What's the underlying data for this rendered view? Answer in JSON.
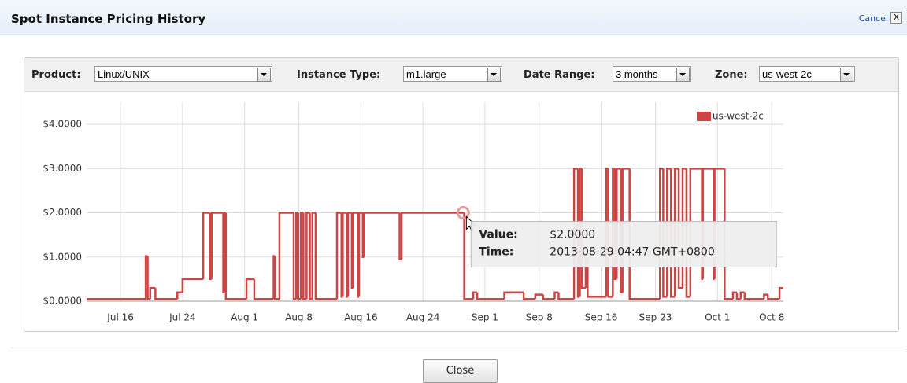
{
  "header": {
    "title": "Spot Instance Pricing History",
    "cancel": "Cancel",
    "close_icon": "X"
  },
  "controls": [
    {
      "label": "Product:",
      "value": "Linux/UNIX"
    },
    {
      "label": "Instance Type:",
      "value": "m1.large"
    },
    {
      "label": "Date Range:",
      "value": "3 months"
    },
    {
      "label": "Zone:",
      "value": "us-west-2c"
    }
  ],
  "chart_data": {
    "type": "step",
    "x": [
      "2013-07-11T15:00",
      "2013-07-19T06:00",
      "2013-07-19T12:00",
      "2013-07-19T20:00",
      "2013-07-20T12:00",
      "2013-07-23T08:00",
      "2013-07-24T00:00",
      "2013-07-26T16:00",
      "2013-07-27T12:00",
      "2013-07-27T18:00",
      "2013-07-29T06:00",
      "2013-07-29T10:00",
      "2013-07-29T14:00",
      "2013-08-01T06:00",
      "2013-08-02T06:00",
      "2013-08-04T18:00",
      "2013-08-04T22:00",
      "2013-08-05T12:00",
      "2013-08-07T08:00",
      "2013-08-07T16:00",
      "2013-08-07T22:00",
      "2013-08-08T06:00",
      "2013-08-08T14:00",
      "2013-08-09T00:00",
      "2013-08-09T10:00",
      "2013-08-09T18:00",
      "2013-08-10T04:00",
      "2013-08-12T22:00",
      "2013-08-13T12:00",
      "2013-08-13T16:00",
      "2013-08-14T04:00",
      "2013-08-14T08:00",
      "2013-08-14T20:00",
      "2013-08-15T00:00",
      "2013-08-15T14:00",
      "2013-08-15T18:00",
      "2013-08-16T06:00",
      "2013-08-16T10:00",
      "2013-08-21T00:00",
      "2013-08-21T06:00",
      "2013-08-29T04:47",
      "2013-08-29T08:00",
      "2013-08-30T12:00",
      "2013-08-31T00:00",
      "2013-09-03T12:00",
      "2013-09-06T00:00",
      "2013-09-07T12:00",
      "2013-09-08T12:00",
      "2013-09-10T00:00",
      "2013-09-10T12:00",
      "2013-09-12T12:00",
      "2013-09-13T00:00",
      "2013-09-13T06:00",
      "2013-09-13T12:00",
      "2013-09-14T00:00",
      "2013-09-14T06:00",
      "2013-09-16T16:00",
      "2013-09-16T22:00",
      "2013-09-17T12:00",
      "2013-09-17T18:00",
      "2013-09-18T00:00",
      "2013-09-18T12:00",
      "2013-09-18T18:00",
      "2013-09-19T16:00",
      "2013-09-23T14:00",
      "2013-09-24T00:00",
      "2013-09-24T12:00",
      "2013-09-25T00:00",
      "2013-09-25T12:00",
      "2013-09-26T00:00",
      "2013-09-26T12:00",
      "2013-09-27T00:00",
      "2013-09-27T12:00",
      "2013-09-29T00:00",
      "2013-09-29T03:00",
      "2013-09-30T12:00",
      "2013-09-30T15:00",
      "2013-10-01T22:00",
      "2013-10-03T00:00",
      "2013-10-03T12:00",
      "2013-10-04T00:00",
      "2013-10-04T12:00",
      "2013-10-07T00:00",
      "2013-10-07T12:00",
      "2013-10-09T00:00"
    ],
    "series": [
      {
        "name": "us-west-2c",
        "color": "#cc4444",
        "values": [
          0.05,
          1.02,
          0.05,
          0.3,
          0.05,
          0.2,
          0.5,
          2.0,
          0.5,
          2.0,
          0.2,
          2.0,
          0.05,
          0.5,
          0.05,
          1.02,
          0.05,
          2.0,
          0.05,
          2.0,
          0.05,
          2.0,
          0.05,
          2.0,
          0.05,
          2.0,
          0.05,
          2.0,
          0.1,
          2.0,
          0.1,
          2.0,
          0.3,
          2.0,
          0.1,
          2.0,
          1.0,
          2.0,
          0.95,
          2.0,
          2.0,
          0.05,
          0.2,
          0.05,
          0.2,
          0.05,
          0.15,
          0.05,
          0.2,
          0.05,
          3.0,
          0.1,
          3.0,
          0.3,
          1.0,
          0.1,
          3.0,
          0.1,
          3.0,
          0.5,
          3.0,
          0.2,
          3.0,
          0.05,
          3.0,
          0.1,
          3.0,
          0.1,
          3.0,
          0.3,
          3.0,
          0.1,
          3.0,
          0.5,
          3.0,
          0.5,
          3.0,
          0.05,
          0.2,
          0.05,
          0.2,
          0.05,
          0.15,
          0.05,
          0.3
        ]
      }
    ],
    "xlim": [
      "2013-07-11T15:00",
      "2013-10-09T12:00"
    ],
    "xticks": [
      {
        "value": "2013-07-16T00:00",
        "label": "Jul 16"
      },
      {
        "value": "2013-07-24T00:00",
        "label": "Jul 24"
      },
      {
        "value": "2013-08-01T00:00",
        "label": "Aug 1"
      },
      {
        "value": "2013-08-08T00:00",
        "label": "Aug 8"
      },
      {
        "value": "2013-08-16T00:00",
        "label": "Aug 16"
      },
      {
        "value": "2013-08-24T00:00",
        "label": "Aug 24"
      },
      {
        "value": "2013-09-01T00:00",
        "label": "Sep 1"
      },
      {
        "value": "2013-09-08T00:00",
        "label": "Sep 8"
      },
      {
        "value": "2013-09-16T00:00",
        "label": "Sep 16"
      },
      {
        "value": "2013-09-23T00:00",
        "label": "Sep 23"
      },
      {
        "value": "2013-10-01T00:00",
        "label": "Oct 1"
      },
      {
        "value": "2013-10-08T00:00",
        "label": "Oct 8"
      }
    ],
    "ylim": [
      0,
      4.5
    ],
    "yticks": [
      {
        "value": 0,
        "label": "$0.0000"
      },
      {
        "value": 1,
        "label": "$1.0000"
      },
      {
        "value": 2,
        "label": "$2.0000"
      },
      {
        "value": 3,
        "label": "$3.0000"
      },
      {
        "value": 4,
        "label": "$4.0000"
      }
    ],
    "grid": true,
    "legend": "top-right"
  },
  "tooltip": {
    "value_label": "Value:",
    "value": "$2.0000",
    "time_label": "Time:",
    "time": "2013-08-29 04:47 GMT+0800"
  },
  "footer": {
    "close": "Close"
  }
}
